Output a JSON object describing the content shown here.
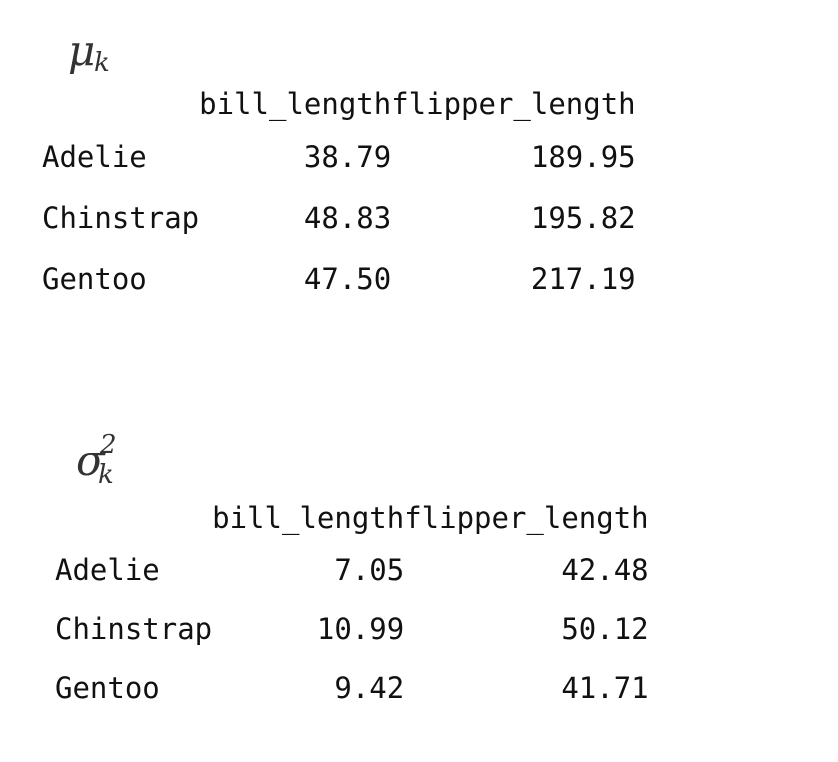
{
  "mu": {
    "symbol": "μ",
    "subscript": "k",
    "columns": [
      "bill_length",
      "flipper_length"
    ],
    "rows": [
      {
        "label": "Adelie",
        "values": [
          "38.79",
          "189.95"
        ]
      },
      {
        "label": "Chinstrap",
        "values": [
          "48.83",
          "195.82"
        ]
      },
      {
        "label": "Gentoo",
        "values": [
          "47.50",
          "217.19"
        ]
      }
    ]
  },
  "sigma": {
    "symbol": "σ",
    "subscript": "k",
    "superscript": "2",
    "columns": [
      "bill_length",
      "flipper_length"
    ],
    "rows": [
      {
        "label": "Adelie",
        "values": [
          "7.05",
          "42.48"
        ]
      },
      {
        "label": "Chinstrap",
        "values": [
          "10.99",
          "50.12"
        ]
      },
      {
        "label": "Gentoo",
        "values": [
          "9.42",
          "41.71"
        ]
      }
    ]
  }
}
